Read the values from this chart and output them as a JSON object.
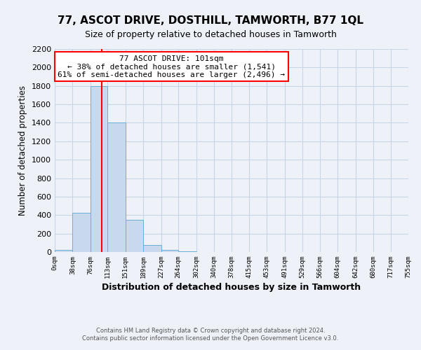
{
  "title": "77, ASCOT DRIVE, DOSTHILL, TAMWORTH, B77 1QL",
  "subtitle": "Size of property relative to detached houses in Tamworth",
  "xlabel": "Distribution of detached houses by size in Tamworth",
  "ylabel": "Number of detached properties",
  "bar_edges": [
    0,
    38,
    76,
    113,
    151,
    189,
    227,
    264,
    302,
    340,
    378,
    415,
    453,
    491,
    529,
    566,
    604,
    642,
    680,
    717,
    755
  ],
  "bar_heights": [
    20,
    425,
    1800,
    1400,
    350,
    75,
    25,
    5,
    0,
    0,
    0,
    0,
    0,
    0,
    0,
    0,
    0,
    0,
    0,
    0
  ],
  "bar_color": "#c8d9ed",
  "bar_edgecolor": "#6baed6",
  "property_line_x": 101,
  "property_line_color": "red",
  "annotation_title": "77 ASCOT DRIVE: 101sqm",
  "annotation_line1": "← 38% of detached houses are smaller (1,541)",
  "annotation_line2": "61% of semi-detached houses are larger (2,496) →",
  "annotation_box_color": "white",
  "annotation_box_edgecolor": "red",
  "ylim": [
    0,
    2200
  ],
  "yticks": [
    0,
    200,
    400,
    600,
    800,
    1000,
    1200,
    1400,
    1600,
    1800,
    2000,
    2200
  ],
  "grid_color": "#c8d4e8",
  "background_color": "#eef2f8",
  "footer_line1": "Contains HM Land Registry data © Crown copyright and database right 2024.",
  "footer_line2": "Contains public sector information licensed under the Open Government Licence v3.0."
}
